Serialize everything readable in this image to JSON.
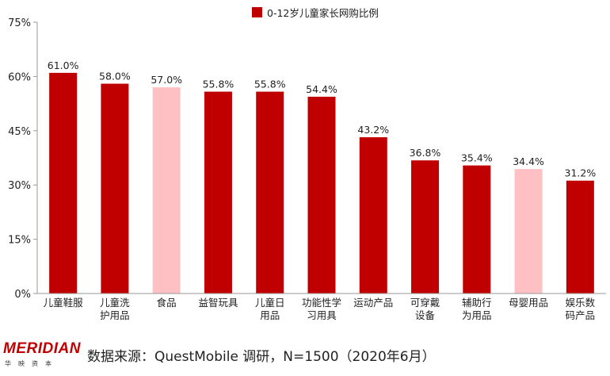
{
  "chart_data": {
    "type": "bar",
    "legend": "0-12岁儿童家长网购比例",
    "legend_position": "top",
    "categories": [
      [
        "儿童鞋服"
      ],
      [
        "儿童洗",
        "护用品"
      ],
      [
        "食品"
      ],
      [
        "益智玩具"
      ],
      [
        "儿童日",
        "用品"
      ],
      [
        "功能性学",
        "习用具"
      ],
      [
        "运动产品"
      ],
      [
        "可穿戴",
        "设备"
      ],
      [
        "辅助行",
        "为用品"
      ],
      [
        "母婴用品"
      ],
      [
        "娱乐数",
        "码产品"
      ]
    ],
    "values": [
      61.0,
      58.0,
      57.0,
      55.8,
      55.8,
      54.4,
      43.2,
      36.8,
      35.4,
      34.4,
      31.2
    ],
    "data_labels": [
      "61.0%",
      "58.0%",
      "57.0%",
      "55.8%",
      "55.8%",
      "54.4%",
      "43.2%",
      "36.8%",
      "35.4%",
      "34.4%",
      "31.2%"
    ],
    "bar_colors": [
      "#c00000",
      "#c00000",
      "#ffc0c4",
      "#c00000",
      "#c00000",
      "#c00000",
      "#c00000",
      "#c00000",
      "#c00000",
      "#ffc0c4",
      "#c00000"
    ],
    "ylim": [
      0,
      75
    ],
    "yticks": [
      0,
      15,
      30,
      45,
      60,
      75
    ],
    "ytick_labels": [
      "0%",
      "15%",
      "30%",
      "45%",
      "60%",
      "75%"
    ],
    "grid": false
  },
  "colors": {
    "accent": "#c00000",
    "highlight": "#ffc0c4",
    "axis": "#999999"
  },
  "footer": {
    "logo_text": "MERIDIAN",
    "logo_sub": "华映资本",
    "source": "数据来源：QuestMobile 调研，N=1500（2020年6月）"
  }
}
